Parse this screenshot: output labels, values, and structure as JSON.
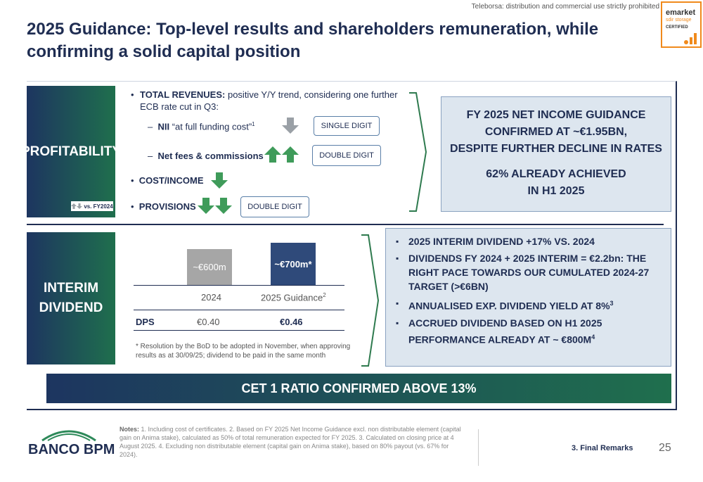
{
  "header": {
    "disclaimer": "Teleborsa: distribution and commercial use strictly prohibited",
    "title": "2025 Guidance: Top-level results and shareholders remuneration, while confirming a solid capital position",
    "cert_logo": {
      "line1": "emarket",
      "line2": "sdir storage",
      "line3": "CERTIFIED"
    }
  },
  "profitability": {
    "side_label": "PROFITABILITY",
    "vs_label": "vs. FY2024",
    "total_revenues_label": "TOTAL REVENUES:",
    "total_revenues_text": " positive Y/Y trend, considering one further ECB rate cut in Q3:",
    "nii_label": "NII",
    "nii_text": " “at full funding cost”",
    "nii_sup": "1",
    "nii_pill": "SINGLE DIGIT",
    "fees_label": "Net fees & commissions",
    "fees_pill": "DOUBLE DIGIT",
    "cost_income_label": "COST/INCOME",
    "provisions_label": "PROVISIONS",
    "provisions_pill": "DOUBLE DIGIT",
    "guidance_line1": "FY 2025 NET INCOME GUIDANCE",
    "guidance_line2": "CONFIRMED AT ~€1.95BN,",
    "guidance_line3": "DESPITE FURTHER DECLINE IN RATES",
    "achieved_line1": "62% ALREADY ACHIEVED",
    "achieved_line2": "IN H1 2025",
    "colors": {
      "green": "#3f9b5a",
      "grey": "#9aa0a6",
      "navy": "#1f2d52"
    }
  },
  "dividend": {
    "side_label_1": "INTERIM",
    "side_label_2": "DIVIDEND",
    "chart_data": {
      "type": "bar",
      "categories": [
        "2024",
        "2025 Guidance"
      ],
      "values": [
        600,
        700
      ],
      "value_labels": [
        "~€600m",
        "~€700m*"
      ],
      "category_sup": [
        "",
        "2"
      ],
      "colors": [
        "#a6a6a6",
        "#2f4a7a"
      ]
    },
    "dps_label": "DPS",
    "dps_2024": "€0.40",
    "dps_2025": "€0.46",
    "footnote": "* Resolution by the BoD to be adopted in November, when approving results as at 30/09/25; dividend to be paid in the same month",
    "bullets": [
      {
        "text": "2025 INTERIM DIVIDEND +17% VS. 2024",
        "sup": ""
      },
      {
        "text": "DIVIDENDS FY 2024 + 2025 INTERIM = €2.2bn: THE RIGHT PACE TOWARDS OUR CUMULATED 2024-27 TARGET (>€6BN)",
        "sup": ""
      },
      {
        "text": "ANNUALISED EXP. DIVIDEND YIELD AT 8%",
        "sup": "3"
      },
      {
        "text": "ACCRUED DIVIDEND BASED ON H1 2025 PERFORMANCE ALREADY AT ~ €800M",
        "sup": "4"
      }
    ]
  },
  "cet1": "CET 1 RATIO CONFIRMED ABOVE 13%",
  "footer": {
    "bank_name_1": "BANCO",
    "bank_name_2": "BPM",
    "notes_label": "Notes:",
    "notes_text": " 1. Including cost of certificates. 2. Based on FY 2025 Net Income Guidance excl. non distributable element (capital gain on Anima stake), calculated as 50% of total remuneration expected for FY 2025. 3. Calculated on closing price at 4 August 2025. 4. Excluding non distributable element (capital gain on Anima stake), based on 80% payout (vs. 67% for 2024).",
    "section": "3. Final Remarks",
    "page": "25"
  }
}
